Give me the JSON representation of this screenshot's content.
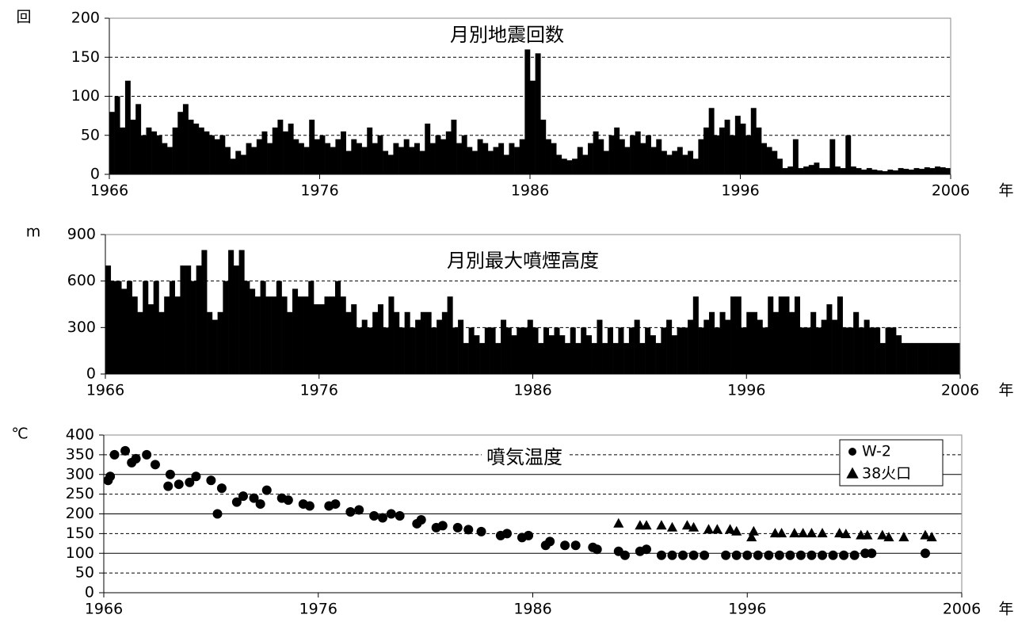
{
  "chart_data": [
    {
      "type": "bar",
      "title": "月別地震回数",
      "y_unit": "回",
      "x_unit": "年",
      "color": "#000000",
      "xlim": [
        1966,
        2006
      ],
      "xticks": [
        1966,
        1976,
        1986,
        1996,
        2006
      ],
      "ylim": [
        0,
        200
      ],
      "yticks": [
        0,
        50,
        100,
        150,
        200
      ],
      "grid": {
        "dashed": [
          50,
          100,
          150
        ]
      },
      "x": [
        1966.125,
        1966.375,
        1966.625,
        1966.875,
        1967.125,
        1967.375,
        1967.625,
        1967.875,
        1968.125,
        1968.375,
        1968.625,
        1968.875,
        1969.125,
        1969.375,
        1969.625,
        1969.875,
        1970.125,
        1970.375,
        1970.625,
        1970.875,
        1971.125,
        1971.375,
        1971.625,
        1971.875,
        1972.125,
        1972.375,
        1972.625,
        1972.875,
        1973.125,
        1973.375,
        1973.625,
        1973.875,
        1974.125,
        1974.375,
        1974.625,
        1974.875,
        1975.125,
        1975.375,
        1975.625,
        1975.875,
        1976.125,
        1976.375,
        1976.625,
        1976.875,
        1977.125,
        1977.375,
        1977.625,
        1977.875,
        1978.125,
        1978.375,
        1978.625,
        1978.875,
        1979.125,
        1979.375,
        1979.625,
        1979.875,
        1980.125,
        1980.375,
        1980.625,
        1980.875,
        1981.125,
        1981.375,
        1981.625,
        1981.875,
        1982.125,
        1982.375,
        1982.625,
        1982.875,
        1983.125,
        1983.375,
        1983.625,
        1983.875,
        1984.125,
        1984.375,
        1984.625,
        1984.875,
        1985.125,
        1985.375,
        1985.625,
        1985.875,
        1986.125,
        1986.375,
        1986.625,
        1986.875,
        1987.125,
        1987.375,
        1987.625,
        1987.875,
        1988.125,
        1988.375,
        1988.625,
        1988.875,
        1989.125,
        1989.375,
        1989.625,
        1989.875,
        1990.125,
        1990.375,
        1990.625,
        1990.875,
        1991.125,
        1991.375,
        1991.625,
        1991.875,
        1992.125,
        1992.375,
        1992.625,
        1992.875,
        1993.125,
        1993.375,
        1993.625,
        1993.875,
        1994.125,
        1994.375,
        1994.625,
        1994.875,
        1995.125,
        1995.375,
        1995.625,
        1995.875,
        1996.125,
        1996.375,
        1996.625,
        1996.875,
        1997.125,
        1997.375,
        1997.625,
        1997.875,
        1998.125,
        1998.375,
        1998.625,
        1998.875,
        1999.125,
        1999.375,
        1999.625,
        1999.875,
        2000.125,
        2000.375,
        2000.625,
        2000.875,
        2001.125,
        2001.375,
        2001.625,
        2001.875,
        2002.125,
        2002.375,
        2002.625,
        2002.875,
        2003.125,
        2003.375,
        2003.625,
        2003.875,
        2004.125,
        2004.375,
        2004.625,
        2004.875,
        2005.125,
        2005.375,
        2005.625,
        2005.875
      ],
      "values": [
        80,
        100,
        60,
        120,
        70,
        90,
        50,
        60,
        55,
        50,
        40,
        35,
        60,
        80,
        90,
        70,
        65,
        60,
        55,
        50,
        45,
        50,
        35,
        20,
        30,
        25,
        40,
        35,
        45,
        55,
        40,
        60,
        70,
        55,
        65,
        45,
        40,
        35,
        70,
        45,
        50,
        40,
        35,
        45,
        55,
        30,
        45,
        40,
        35,
        60,
        40,
        50,
        30,
        25,
        40,
        35,
        45,
        35,
        40,
        30,
        65,
        40,
        50,
        45,
        55,
        70,
        40,
        50,
        35,
        30,
        45,
        40,
        30,
        35,
        40,
        25,
        40,
        35,
        45,
        160,
        120,
        155,
        70,
        45,
        40,
        25,
        20,
        18,
        20,
        35,
        25,
        40,
        55,
        45,
        30,
        50,
        60,
        45,
        35,
        50,
        55,
        40,
        50,
        35,
        45,
        30,
        25,
        30,
        35,
        25,
        30,
        20,
        45,
        60,
        85,
        50,
        60,
        70,
        50,
        75,
        65,
        50,
        85,
        60,
        40,
        35,
        30,
        20,
        8,
        10,
        45,
        8,
        10,
        12,
        15,
        8,
        8,
        45,
        10,
        8,
        50,
        10,
        8,
        6,
        8,
        6,
        5,
        4,
        6,
        5,
        8,
        7,
        6,
        8,
        7,
        9,
        8,
        10,
        9,
        8
      ]
    },
    {
      "type": "bar",
      "title": "月別最大噴煙高度",
      "y_unit": "m",
      "x_unit": "年",
      "color": "#000000",
      "xlim": [
        1966,
        2006
      ],
      "xticks": [
        1966,
        1976,
        1986,
        1996,
        2006
      ],
      "ylim": [
        0,
        900
      ],
      "yticks": [
        0,
        300,
        600,
        900
      ],
      "grid": {
        "dashed": [
          300,
          600
        ]
      },
      "x": [
        1966.125,
        1966.375,
        1966.625,
        1966.875,
        1967.125,
        1967.375,
        1967.625,
        1967.875,
        1968.125,
        1968.375,
        1968.625,
        1968.875,
        1969.125,
        1969.375,
        1969.625,
        1969.875,
        1970.125,
        1970.375,
        1970.625,
        1970.875,
        1971.125,
        1971.375,
        1971.625,
        1971.875,
        1972.125,
        1972.375,
        1972.625,
        1972.875,
        1973.125,
        1973.375,
        1973.625,
        1973.875,
        1974.125,
        1974.375,
        1974.625,
        1974.875,
        1975.125,
        1975.375,
        1975.625,
        1975.875,
        1976.125,
        1976.375,
        1976.625,
        1976.875,
        1977.125,
        1977.375,
        1977.625,
        1977.875,
        1978.125,
        1978.375,
        1978.625,
        1978.875,
        1979.125,
        1979.375,
        1979.625,
        1979.875,
        1980.125,
        1980.375,
        1980.625,
        1980.875,
        1981.125,
        1981.375,
        1981.625,
        1981.875,
        1982.125,
        1982.375,
        1982.625,
        1982.875,
        1983.125,
        1983.375,
        1983.625,
        1983.875,
        1984.125,
        1984.375,
        1984.625,
        1984.875,
        1985.125,
        1985.375,
        1985.625,
        1985.875,
        1986.125,
        1986.375,
        1986.625,
        1986.875,
        1987.125,
        1987.375,
        1987.625,
        1987.875,
        1988.125,
        1988.375,
        1988.625,
        1988.875,
        1989.125,
        1989.375,
        1989.625,
        1989.875,
        1990.125,
        1990.375,
        1990.625,
        1990.875,
        1991.125,
        1991.375,
        1991.625,
        1991.875,
        1992.125,
        1992.375,
        1992.625,
        1992.875,
        1993.125,
        1993.375,
        1993.625,
        1993.875,
        1994.125,
        1994.375,
        1994.625,
        1994.875,
        1995.125,
        1995.375,
        1995.625,
        1995.875,
        1996.125,
        1996.375,
        1996.625,
        1996.875,
        1997.125,
        1997.375,
        1997.625,
        1997.875,
        1998.125,
        1998.375,
        1998.625,
        1998.875,
        1999.125,
        1999.375,
        1999.625,
        1999.875,
        2000.125,
        2000.375,
        2000.625,
        2000.875,
        2001.125,
        2001.375,
        2001.625,
        2001.875,
        2002.125,
        2002.375,
        2002.625,
        2002.875,
        2003.125,
        2003.375,
        2003.625,
        2003.875,
        2004.125,
        2004.375,
        2004.625,
        2004.875,
        2005.125,
        2005.375,
        2005.625,
        2005.875
      ],
      "values": [
        700,
        600,
        600,
        550,
        600,
        500,
        400,
        600,
        450,
        600,
        400,
        500,
        600,
        500,
        700,
        700,
        600,
        700,
        800,
        400,
        350,
        400,
        600,
        800,
        700,
        800,
        600,
        550,
        500,
        600,
        500,
        500,
        600,
        500,
        400,
        550,
        500,
        500,
        600,
        450,
        450,
        500,
        500,
        600,
        500,
        400,
        450,
        300,
        350,
        300,
        400,
        450,
        300,
        500,
        400,
        300,
        400,
        300,
        350,
        400,
        400,
        300,
        350,
        400,
        500,
        300,
        350,
        200,
        300,
        250,
        200,
        300,
        300,
        200,
        350,
        300,
        250,
        300,
        300,
        350,
        300,
        200,
        300,
        250,
        300,
        250,
        200,
        300,
        200,
        300,
        250,
        200,
        350,
        200,
        300,
        200,
        300,
        200,
        300,
        350,
        200,
        300,
        250,
        200,
        300,
        350,
        250,
        300,
        300,
        350,
        500,
        300,
        350,
        400,
        300,
        400,
        350,
        500,
        500,
        300,
        400,
        400,
        350,
        300,
        500,
        400,
        500,
        500,
        400,
        500,
        300,
        300,
        400,
        300,
        350,
        450,
        350,
        500,
        300,
        300,
        400,
        300,
        350,
        300,
        300,
        200,
        300,
        300,
        250,
        200,
        200,
        200,
        200,
        200,
        200,
        200,
        200,
        200,
        200,
        200
      ]
    },
    {
      "type": "scatter",
      "title": "噴気温度",
      "y_unit": "℃",
      "x_unit": "年",
      "legend": "upper right",
      "xlim": [
        1966,
        2006
      ],
      "xticks": [
        1966,
        1976,
        1986,
        1996,
        2006
      ],
      "ylim": [
        0,
        400
      ],
      "yticks": [
        0,
        50,
        100,
        150,
        200,
        250,
        300,
        350,
        400
      ],
      "grid": {
        "solid": [
          100,
          200,
          300
        ],
        "dashed": [
          50,
          150,
          250,
          350
        ]
      },
      "series": [
        {
          "name": "W-2",
          "marker": "circle",
          "color": "#000000",
          "x": [
            1966.2,
            1966.3,
            1966.5,
            1967.0,
            1967.3,
            1967.5,
            1968.0,
            1968.4,
            1969.0,
            1969.1,
            1969.5,
            1970.0,
            1970.3,
            1971.0,
            1971.3,
            1971.5,
            1972.2,
            1972.5,
            1973.0,
            1973.3,
            1973.6,
            1974.3,
            1974.6,
            1975.3,
            1975.6,
            1976.5,
            1976.8,
            1977.5,
            1977.9,
            1978.6,
            1979.0,
            1979.4,
            1979.8,
            1980.6,
            1980.8,
            1981.5,
            1981.8,
            1982.5,
            1983.0,
            1983.6,
            1984.5,
            1984.8,
            1985.5,
            1985.8,
            1986.6,
            1986.8,
            1987.5,
            1988.0,
            1988.8,
            1989.0,
            1990.0,
            1990.3,
            1991.0,
            1991.3,
            1992.0,
            1992.5,
            1993.0,
            1993.5,
            1994.0,
            1995.0,
            1995.5,
            1996.0,
            1996.5,
            1997.0,
            1997.5,
            1998.0,
            1998.5,
            1999.0,
            1999.5,
            2000.0,
            2000.5,
            2001.0,
            2001.5,
            2001.8,
            2004.3
          ],
          "values": [
            285,
            295,
            350,
            360,
            330,
            340,
            350,
            325,
            270,
            300,
            275,
            280,
            295,
            285,
            200,
            265,
            230,
            245,
            240,
            225,
            260,
            240,
            235,
            225,
            220,
            220,
            225,
            205,
            210,
            195,
            190,
            200,
            195,
            175,
            185,
            165,
            170,
            165,
            160,
            155,
            145,
            150,
            140,
            145,
            120,
            130,
            120,
            120,
            115,
            110,
            105,
            95,
            105,
            110,
            95,
            95,
            95,
            95,
            95,
            95,
            95,
            95,
            95,
            95,
            95,
            95,
            95,
            95,
            95,
            95,
            95,
            95,
            100,
            100,
            100
          ]
        },
        {
          "name": "38火口",
          "marker": "triangle",
          "color": "#000000",
          "x": [
            1990.0,
            1991.0,
            1991.3,
            1992.0,
            1992.5,
            1993.2,
            1993.5,
            1994.2,
            1994.6,
            1995.2,
            1995.5,
            1996.2,
            1996.3,
            1997.3,
            1997.6,
            1998.2,
            1998.6,
            1999.0,
            1999.5,
            2000.3,
            2000.6,
            2001.3,
            2001.6,
            2002.3,
            2002.6,
            2003.3,
            2004.3,
            2004.6
          ],
          "values": [
            175,
            170,
            170,
            170,
            165,
            170,
            165,
            160,
            160,
            160,
            155,
            140,
            155,
            150,
            150,
            150,
            150,
            150,
            150,
            150,
            148,
            145,
            145,
            145,
            140,
            140,
            145,
            140
          ]
        }
      ]
    }
  ]
}
